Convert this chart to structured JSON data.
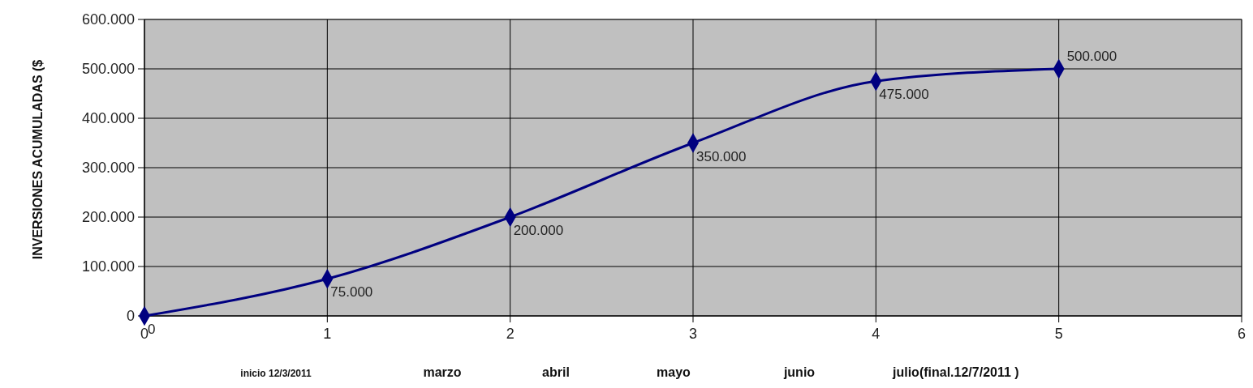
{
  "chart_data": {
    "type": "line",
    "ylabel": "INVERSIONES ACUMULADAS ($",
    "x": [
      0,
      1,
      2,
      3,
      4,
      5
    ],
    "series": [
      {
        "color": "#000080",
        "values": [
          0,
          75000,
          200000,
          350000,
          475000,
          500000
        ],
        "value_labels": [
          "0",
          "75.000",
          "200.000",
          "350.000",
          "475.000",
          "500.000"
        ]
      }
    ],
    "xlim": [
      0,
      6
    ],
    "xticks": [
      0,
      1,
      2,
      3,
      4,
      5,
      6
    ],
    "ylim": [
      0,
      600000
    ],
    "yticks": [
      0,
      {
        "value": 100000,
        "label": "100.000"
      },
      {
        "value": 200000,
        "label": "200.000"
      },
      {
        "value": 300000,
        "label": "300.000"
      },
      {
        "value": 400000,
        "label": "400.000"
      },
      {
        "value": 500000,
        "label": "500.000"
      },
      {
        "value": 600000,
        "label": "600.000"
      }
    ],
    "grid": true,
    "marker": "diamond",
    "annotations": [
      "inicio 12/3/2011",
      "marzo",
      "abril",
      "mayo",
      "junio",
      "julio(final.12/7/2011 )"
    ]
  }
}
